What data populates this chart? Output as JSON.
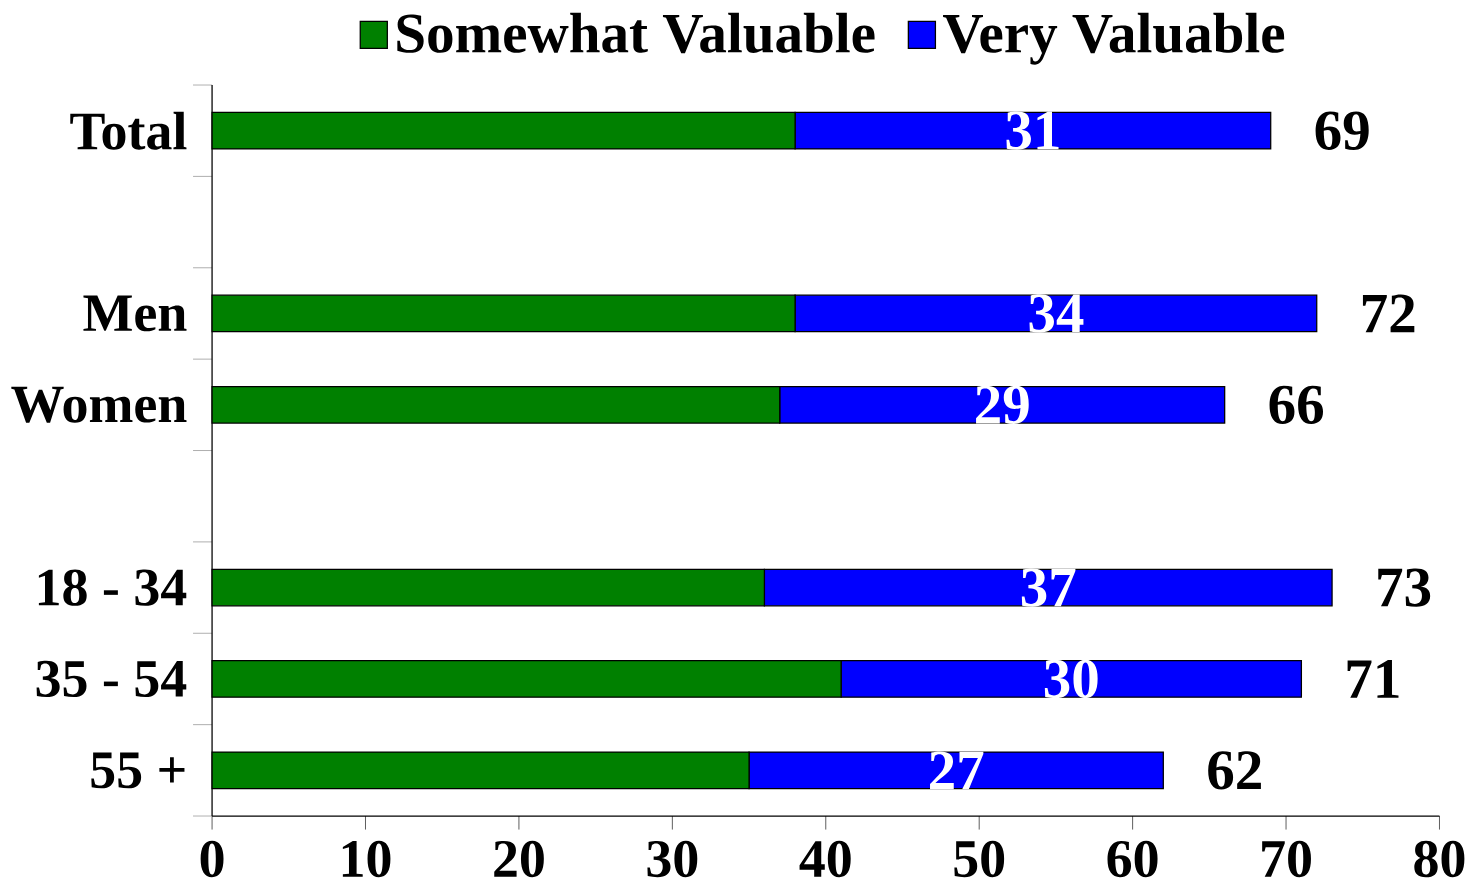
{
  "chart_data": {
    "type": "bar",
    "orientation": "horizontal",
    "stacked": true,
    "legend": "top",
    "categories": [
      "Total",
      null,
      "Men",
      "Women",
      null,
      "18 - 34",
      "35 - 54",
      "55 +"
    ],
    "series": [
      {
        "name": "Somewhat Valuable",
        "color": "#008000",
        "values": [
          38,
          null,
          38,
          37,
          null,
          36,
          41,
          35
        ]
      },
      {
        "name": "Very Valuable",
        "color": "#0000ff",
        "values": [
          31,
          null,
          34,
          29,
          null,
          37,
          30,
          27
        ],
        "value_labels": [
          "31",
          null,
          "34",
          "29",
          null,
          "37",
          "30",
          "27"
        ]
      }
    ],
    "totals": [
      "69",
      null,
      "72",
      "66",
      null,
      "73",
      "71",
      "62"
    ],
    "xlim": [
      0,
      80
    ],
    "xticks": [
      0,
      10,
      20,
      30,
      40,
      50,
      60,
      70,
      80
    ]
  }
}
